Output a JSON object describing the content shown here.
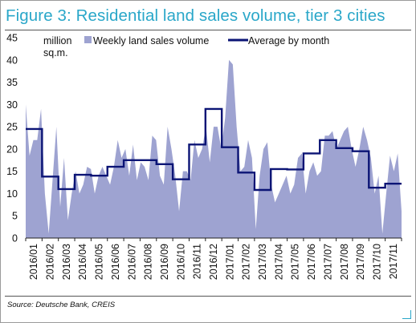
{
  "figure": {
    "title": "Figure 3: Residential land sales volume, tier 3 cities",
    "source": "Source: Deutsche Bank, CREIS"
  },
  "chart_data": {
    "type": "area",
    "unit_label_line1": "million",
    "unit_label_line2": "sq.m.",
    "ylim": [
      0,
      45
    ],
    "yticks": [
      0,
      5,
      10,
      15,
      20,
      25,
      30,
      35,
      40,
      45
    ],
    "months": [
      "2016/01",
      "2016/02",
      "2016/03",
      "2016/04",
      "2016/05",
      "2016/06",
      "2016/07",
      "2016/08",
      "2016/09",
      "2016/10",
      "2016/11",
      "2016/12",
      "2017/01",
      "2017/02",
      "2017/03",
      "2017/04",
      "2017/05",
      "2017/06",
      "2017/07",
      "2017/08",
      "2017/09",
      "2017/10",
      "2017/11"
    ],
    "legend": [
      {
        "name": "Weekly land sales volume",
        "color": "#9ea3d1",
        "kind": "area"
      },
      {
        "name": "Average by month",
        "color": "#0b1475",
        "kind": "line"
      }
    ],
    "series": [
      {
        "name": "Weekly land sales volume",
        "values": [
          30,
          18.5,
          22,
          22,
          29,
          10,
          1,
          13,
          25,
          7,
          18,
          4,
          10,
          15,
          10,
          12,
          16,
          15.5,
          10,
          14,
          16,
          14,
          12,
          16,
          22,
          18,
          20,
          14,
          21,
          13,
          17,
          16,
          13,
          23,
          22,
          14,
          12,
          25,
          20,
          14,
          6,
          15,
          15,
          13,
          22,
          18,
          20,
          25,
          17,
          25,
          25,
          20,
          27,
          40,
          39,
          25,
          15,
          16,
          22,
          18,
          2,
          14,
          20,
          21.5,
          12,
          8,
          10,
          12,
          14,
          10,
          12,
          18,
          19,
          10,
          15,
          17,
          14,
          15,
          23,
          23,
          24,
          20,
          22,
          24,
          25,
          20,
          16,
          20,
          25,
          22,
          18,
          10,
          14,
          1,
          10,
          18.5,
          15,
          19,
          6
        ],
        "color": "#9ea3d1"
      },
      {
        "name": "Average by month",
        "values": [
          24.5,
          13.8,
          11.0,
          14.2,
          14.0,
          16.0,
          17.5,
          17.5,
          16.6,
          13.2,
          21.0,
          29.0,
          20.4,
          14.7,
          10.8,
          15.5,
          15.4,
          19.0,
          22.0,
          20.2,
          19.5,
          11.3,
          12.2
        ],
        "color": "#0b1475"
      }
    ]
  }
}
